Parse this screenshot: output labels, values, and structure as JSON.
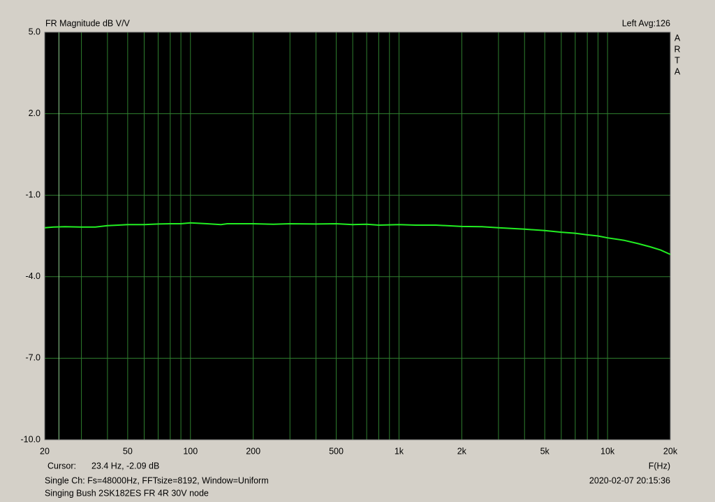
{
  "chart_data": {
    "type": "line",
    "title": "FR Magnitude dB V/V",
    "channel_info": "Left  Avg:126",
    "brand": [
      "A",
      "R",
      "T",
      "A"
    ],
    "x_label": "F(Hz)",
    "cursor_label": "Cursor:",
    "cursor_text": "23.4 Hz, -2.09 dB",
    "cursor_x": 23.4,
    "info": "Single Ch: Fs=48000Hz, FFTsize=8192, Window=Uniform",
    "timestamp": "2020-02-07  20:15:36",
    "description": "Singing Bush 2SK182ES FR 4R 30V node",
    "xscale": "log",
    "xlim": [
      20,
      20000
    ],
    "ylim": [
      -10,
      5
    ],
    "yticks": [
      {
        "value": -10,
        "label": "-10.0"
      },
      {
        "value": -7,
        "label": "-7.0"
      },
      {
        "value": -4,
        "label": "-4.0"
      },
      {
        "value": -1,
        "label": "-1.0"
      },
      {
        "value": 2,
        "label": "2.0"
      },
      {
        "value": 5,
        "label": "5.0"
      }
    ],
    "xticks": [
      20,
      50,
      100,
      200,
      500,
      {
        "value": 1000,
        "label": "1k"
      },
      {
        "value": 2000,
        "label": "2k"
      },
      {
        "value": 5000,
        "label": "5k"
      },
      {
        "value": 10000,
        "label": "10k"
      },
      {
        "value": 20000,
        "label": "20k"
      }
    ],
    "x_minor_ticks": [
      30,
      40,
      60,
      70,
      80,
      90,
      300,
      400,
      600,
      700,
      800,
      900,
      3000,
      4000,
      6000,
      7000,
      8000,
      9000
    ],
    "grid": true,
    "grid_color": "#2f7f2f",
    "background": "#000000",
    "series": [
      {
        "color": "#22ee22",
        "x": [
          20,
          22,
          25,
          30,
          35,
          40,
          45,
          50,
          60,
          70,
          80,
          90,
          100,
          120,
          140,
          150,
          200,
          250,
          300,
          400,
          500,
          600,
          700,
          800,
          1000,
          1200,
          1500,
          2000,
          2500,
          3000,
          4000,
          5000,
          6000,
          7000,
          8000,
          9000,
          10000,
          12000,
          14000,
          16000,
          18000,
          20000
        ],
        "values": [
          -2.2,
          -2.17,
          -2.16,
          -2.17,
          -2.17,
          -2.12,
          -2.1,
          -2.08,
          -2.08,
          -2.06,
          -2.05,
          -2.05,
          -2.02,
          -2.05,
          -2.08,
          -2.05,
          -2.05,
          -2.07,
          -2.05,
          -2.06,
          -2.05,
          -2.08,
          -2.07,
          -2.1,
          -2.08,
          -2.1,
          -2.1,
          -2.15,
          -2.16,
          -2.2,
          -2.25,
          -2.3,
          -2.36,
          -2.4,
          -2.46,
          -2.5,
          -2.57,
          -2.66,
          -2.78,
          -2.9,
          -3.02,
          -3.18
        ]
      }
    ]
  }
}
